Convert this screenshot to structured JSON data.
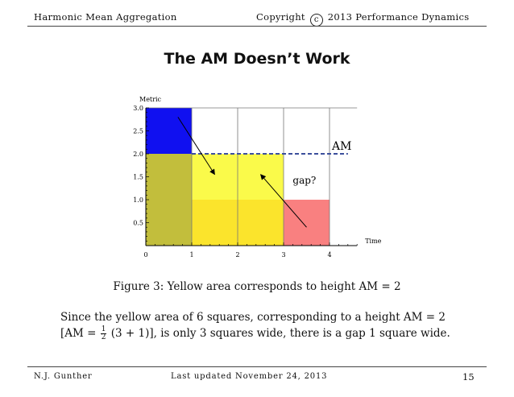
{
  "header": {
    "left": "Harmonic Mean Aggregation",
    "copyright_pre": "Copyright",
    "copyright_symbol": "c",
    "copyright_post": "2013 Performance Dynamics"
  },
  "slide": {
    "title": "The AM Doesn’t Work"
  },
  "chart_data": {
    "type": "area",
    "ylabel": "Metric",
    "xlabel": "Time",
    "xlim": [
      0,
      4.6
    ],
    "ylim": [
      0,
      3.0
    ],
    "x_ticks": [
      "0",
      "1",
      "2",
      "3",
      "4"
    ],
    "y_ticks": [
      "0.5",
      "1.0",
      "1.5",
      "2.0",
      "2.5",
      "3.0"
    ],
    "regions": [
      {
        "x": [
          0,
          1
        ],
        "y": [
          2,
          3
        ],
        "color": "#1010f0"
      },
      {
        "x": [
          0,
          1
        ],
        "y": [
          0,
          2
        ],
        "color": "#c2be3c"
      },
      {
        "x": [
          1,
          3
        ],
        "y": [
          1,
          2
        ],
        "color": "#fafa4a"
      },
      {
        "x": [
          1,
          3
        ],
        "y": [
          0,
          1
        ],
        "color": "#fbe42c"
      },
      {
        "x": [
          3,
          4
        ],
        "y": [
          0,
          1
        ],
        "color": "#f98080"
      }
    ],
    "am_line": {
      "y": 2,
      "x_start": 1,
      "x_end": 4.4,
      "label": "AM",
      "color": "#3c4f9c"
    },
    "arrows": [
      {
        "from": [
          0.7,
          2.8
        ],
        "to": [
          1.5,
          1.55
        ]
      },
      {
        "from": [
          3.5,
          0.4
        ],
        "to": [
          2.5,
          1.55
        ]
      }
    ],
    "annotation": {
      "text": "gap?"
    },
    "grid": true
  },
  "figure": {
    "caption": "Figure 3: Yellow area corresponds to height AM = 2"
  },
  "body": {
    "line1": "Since the yellow area of 6 squares, corresponding to a height AM = 2",
    "line2_pre": "[AM = ",
    "frac_num": "1",
    "frac_den": "2",
    "line2_post": "(3 + 1)], is only 3 squares wide, there is a gap 1 square wide."
  },
  "footer": {
    "author": "N.J. Gunther",
    "updated": "Last updated November 24, 2013",
    "page": "15"
  }
}
